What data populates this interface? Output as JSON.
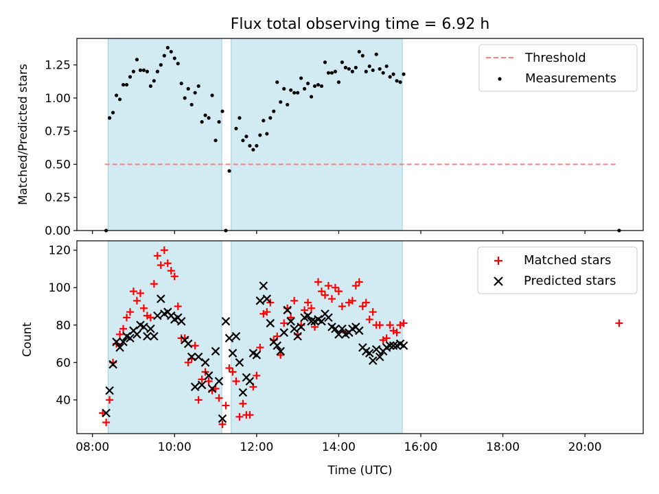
{
  "title": "Flux total observing time = 6.92 h",
  "colors": {
    "threshold": "#ff7f7f",
    "measurements": "#000000",
    "matched": "#ff0000",
    "predicted": "#000000",
    "observing_window": "#add8e6"
  },
  "chart_data": [
    {
      "type": "scatter",
      "title": "Flux total observing time = 6.92 h",
      "ylabel": "Matched/Predicted stars",
      "xlim_hours": [
        7.62,
        21.42
      ],
      "ylim": [
        0,
        1.45
      ],
      "yticks": [
        0.0,
        0.25,
        0.5,
        0.75,
        1.0,
        1.25
      ],
      "ytick_labels": [
        "0.00",
        "0.25",
        "0.50",
        "0.75",
        "1.00",
        "1.25"
      ],
      "observing_windows": [
        [
          8.38,
          11.15
        ],
        [
          11.38,
          15.55
        ]
      ],
      "threshold": {
        "name": "Threshold",
        "value": 0.5,
        "x_range": [
          8.3,
          20.8
        ],
        "style": "dashed"
      },
      "legend": [
        "Threshold",
        "Measurements"
      ],
      "legend_position": "top-right",
      "series": [
        {
          "name": "Measurements",
          "x": [
            "08:20",
            "08:25",
            "08:30",
            "08:35",
            "08:40",
            "08:45",
            "08:50",
            "08:55",
            "09:00",
            "09:05",
            "09:10",
            "09:15",
            "09:20",
            "09:25",
            "09:30",
            "09:35",
            "09:40",
            "09:45",
            "09:50",
            "09:55",
            "10:00",
            "10:05",
            "10:10",
            "10:15",
            "10:20",
            "10:25",
            "10:30",
            "10:35",
            "10:40",
            "10:45",
            "10:50",
            "10:55",
            "11:00",
            "11:05",
            "11:10",
            "11:15",
            "11:20",
            "11:30",
            "11:35",
            "11:40",
            "11:45",
            "11:50",
            "11:55",
            "12:00",
            "12:05",
            "12:10",
            "12:15",
            "12:20",
            "12:25",
            "12:30",
            "12:35",
            "12:40",
            "12:45",
            "12:50",
            "12:55",
            "13:00",
            "13:05",
            "13:10",
            "13:15",
            "13:20",
            "13:25",
            "13:30",
            "13:35",
            "13:40",
            "13:45",
            "13:50",
            "13:55",
            "14:00",
            "14:05",
            "14:10",
            "14:15",
            "14:20",
            "14:25",
            "14:30",
            "14:35",
            "14:40",
            "14:45",
            "14:50",
            "14:55",
            "15:00",
            "15:05",
            "15:10",
            "15:15",
            "15:20",
            "15:25",
            "15:30",
            "15:35",
            "20:50"
          ],
          "y": [
            0.0,
            0.85,
            0.89,
            1.02,
            0.99,
            1.1,
            1.1,
            1.16,
            1.2,
            1.29,
            1.21,
            1.21,
            1.2,
            1.09,
            1.13,
            1.2,
            1.25,
            1.32,
            1.38,
            1.35,
            1.3,
            1.26,
            1.11,
            1.0,
            1.07,
            0.95,
            1.04,
            1.09,
            0.82,
            0.87,
            0.85,
            1.02,
            0.68,
            0.82,
            0.9,
            0.0,
            0.45,
            0.77,
            0.85,
            0.68,
            0.71,
            0.64,
            0.61,
            0.64,
            0.72,
            0.83,
            0.73,
            0.85,
            0.9,
            1.12,
            0.97,
            1.07,
            0.95,
            1.06,
            1.04,
            1.04,
            1.15,
            1.07,
            1.11,
            1.01,
            1.09,
            1.1,
            1.09,
            1.27,
            1.19,
            1.19,
            1.2,
            1.12,
            1.27,
            1.23,
            1.22,
            1.2,
            1.23,
            1.35,
            1.32,
            1.2,
            1.24,
            1.21,
            1.33,
            1.22,
            1.19,
            1.24,
            1.16,
            1.18,
            1.13,
            1.12,
            1.18,
            0.0
          ]
        }
      ]
    },
    {
      "type": "scatter",
      "xlabel": "Time (UTC)",
      "ylabel": "Count",
      "xlim_hours": [
        7.62,
        21.42
      ],
      "ylim": [
        22,
        125
      ],
      "xticks": [
        "08:00",
        "10:00",
        "12:00",
        "14:00",
        "16:00",
        "18:00",
        "20:00"
      ],
      "yticks": [
        40,
        60,
        80,
        100,
        120
      ],
      "observing_windows": [
        [
          8.38,
          11.15
        ],
        [
          11.38,
          15.55
        ]
      ],
      "legend": [
        "Matched stars",
        "Predicted stars"
      ],
      "legend_position": "top-right",
      "series": [
        {
          "name": "Matched stars",
          "x": [
            "08:15",
            "08:20",
            "08:25",
            "08:30",
            "08:35",
            "08:40",
            "08:45",
            "08:50",
            "08:55",
            "09:00",
            "09:05",
            "09:10",
            "09:15",
            "09:20",
            "09:25",
            "09:30",
            "09:35",
            "09:40",
            "09:45",
            "09:50",
            "09:55",
            "10:00",
            "10:05",
            "10:10",
            "10:15",
            "10:20",
            "10:25",
            "10:30",
            "10:35",
            "10:40",
            "10:45",
            "10:50",
            "10:55",
            "11:00",
            "11:05",
            "11:10",
            "11:15",
            "11:20",
            "11:25",
            "11:30",
            "11:35",
            "11:40",
            "11:45",
            "11:50",
            "11:55",
            "12:00",
            "12:05",
            "12:10",
            "12:15",
            "12:20",
            "12:25",
            "12:30",
            "12:35",
            "12:40",
            "12:45",
            "12:50",
            "12:55",
            "13:00",
            "13:05",
            "13:10",
            "13:15",
            "13:20",
            "13:25",
            "13:30",
            "13:35",
            "13:40",
            "13:45",
            "13:50",
            "13:55",
            "14:00",
            "14:05",
            "14:10",
            "14:15",
            "14:20",
            "14:25",
            "14:30",
            "14:35",
            "14:40",
            "14:45",
            "14:50",
            "14:55",
            "15:00",
            "15:05",
            "15:10",
            "15:15",
            "15:20",
            "15:25",
            "15:30",
            "15:35",
            "20:50"
          ],
          "y": [
            33,
            28,
            40,
            60,
            70,
            75,
            78,
            84,
            87,
            98,
            93,
            97,
            89,
            85,
            84,
            102,
            117,
            112,
            120,
            113,
            109,
            106,
            90,
            73,
            73,
            60,
            62,
            69,
            40,
            51,
            55,
            50,
            45,
            46,
            41,
            27,
            37,
            57,
            55,
            50,
            31,
            38,
            32,
            32,
            47,
            53,
            68,
            86,
            87,
            92,
            72,
            74,
            64,
            81,
            89,
            84,
            93,
            75,
            80,
            88,
            92,
            89,
            79,
            103,
            98,
            96,
            101,
            94,
            100,
            98,
            90,
            76,
            92,
            93,
            101,
            103,
            90,
            92,
            83,
            87,
            80,
            80,
            72,
            73,
            80,
            77,
            76,
            80,
            81,
            81
          ]
        },
        {
          "name": "Predicted stars",
          "x": [
            "08:20",
            "08:25",
            "08:30",
            "08:35",
            "08:40",
            "08:45",
            "08:50",
            "08:55",
            "09:00",
            "09:05",
            "09:10",
            "09:15",
            "09:20",
            "09:25",
            "09:30",
            "09:35",
            "09:40",
            "09:45",
            "09:50",
            "09:55",
            "10:00",
            "10:05",
            "10:10",
            "10:15",
            "10:20",
            "10:25",
            "10:30",
            "10:35",
            "10:40",
            "10:45",
            "10:50",
            "10:55",
            "11:00",
            "11:05",
            "11:10",
            "11:15",
            "11:20",
            "11:25",
            "11:30",
            "11:35",
            "11:40",
            "11:45",
            "11:50",
            "11:55",
            "12:00",
            "12:05",
            "12:10",
            "12:15",
            "12:20",
            "12:25",
            "12:30",
            "12:35",
            "12:40",
            "12:45",
            "12:50",
            "12:55",
            "13:00",
            "13:05",
            "13:10",
            "13:15",
            "13:20",
            "13:25",
            "13:30",
            "13:35",
            "13:40",
            "13:45",
            "13:50",
            "13:55",
            "14:00",
            "14:05",
            "14:10",
            "14:15",
            "14:20",
            "14:25",
            "14:30",
            "14:35",
            "14:40",
            "14:45",
            "14:50",
            "14:55",
            "15:00",
            "15:05",
            "15:10",
            "15:15",
            "15:20",
            "15:25",
            "15:30",
            "15:35"
          ],
          "y": [
            33,
            45,
            59,
            71,
            68,
            71,
            74,
            73,
            77,
            75,
            80,
            79,
            74,
            78,
            74,
            85,
            94,
            86,
            87,
            85,
            83,
            84,
            82,
            72,
            70,
            63,
            47,
            63,
            48,
            60,
            53,
            46,
            66,
            50,
            30,
            82,
            73,
            65,
            74,
            60,
            44,
            52,
            50,
            65,
            64,
            93,
            101,
            94,
            81,
            71,
            69,
            66,
            76,
            88,
            82,
            78,
            74,
            79,
            84,
            85,
            82,
            82,
            83,
            82,
            86,
            84,
            79,
            78,
            75,
            78,
            75,
            76,
            78,
            79,
            77,
            68,
            66,
            65,
            61,
            67,
            63,
            66,
            68,
            69,
            69,
            69,
            70,
            69
          ]
        }
      ]
    }
  ]
}
